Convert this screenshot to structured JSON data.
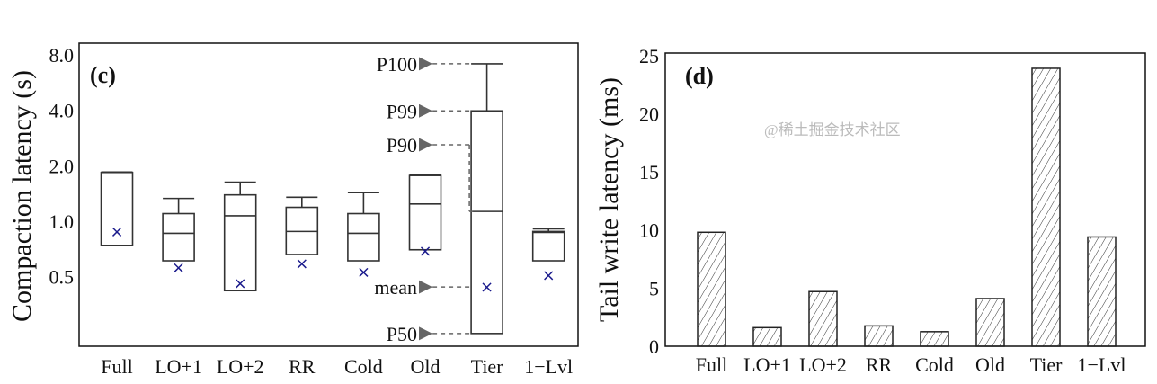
{
  "chart_data": [
    {
      "type": "box",
      "panel_label": "(c)",
      "ylabel": "Compaction latency (s)",
      "yscale": "log2",
      "ylim": [
        0.195,
        8.6
      ],
      "yticks": [
        "8.0",
        "4.0",
        "2.0",
        "1.0",
        "0.5"
      ],
      "ytick_values": [
        8,
        4,
        2,
        1,
        0.5
      ],
      "categories": [
        "Full",
        "LO+1",
        "LO+2",
        "RR",
        "Cold",
        "Old",
        "Tier",
        "1−Lvl"
      ],
      "stats": [
        {
          "p50": 0.74,
          "p90": 1.84,
          "p99": 1.84,
          "p100": 1.85,
          "mean": 0.88
        },
        {
          "p50": 0.61,
          "p90": 0.86,
          "p99": 1.1,
          "p100": 1.33,
          "mean": 0.56
        },
        {
          "p50": 0.42,
          "p90": 1.07,
          "p99": 1.39,
          "p100": 1.63,
          "mean": 0.46
        },
        {
          "p50": 0.66,
          "p90": 0.88,
          "p99": 1.19,
          "p100": 1.35,
          "mean": 0.59
        },
        {
          "p50": 0.61,
          "p90": 0.86,
          "p99": 1.1,
          "p100": 1.43,
          "mean": 0.53
        },
        {
          "p50": 0.7,
          "p90": 1.24,
          "p99": 1.77,
          "p100": 1.78,
          "mean": 0.69
        },
        {
          "p50": 0.246,
          "p90": 1.13,
          "p99": 3.97,
          "p100": 7.15,
          "mean": 0.44
        },
        {
          "p50": 0.61,
          "p90": 0.87,
          "p99": 0.88,
          "p100": 0.91,
          "mean": 0.51
        }
      ],
      "annotations": [
        "P100",
        "P99",
        "P90",
        "mean",
        "P50"
      ],
      "mean_marker_color": "#1a1a8c"
    },
    {
      "type": "bar",
      "panel_label": "(d)",
      "ylabel": "Tail write latency (ms)",
      "ylim": [
        0,
        25
      ],
      "yticks": [
        "0",
        "5",
        "10",
        "15",
        "20",
        "25"
      ],
      "ytick_values": [
        0,
        5,
        10,
        15,
        20,
        25
      ],
      "categories": [
        "Full",
        "LO+1",
        "LO+2",
        "RR",
        "Cold",
        "Old",
        "Tier",
        "1−Lvl"
      ],
      "values": [
        9.8,
        1.6,
        4.7,
        1.75,
        1.25,
        4.1,
        23.9,
        9.4
      ],
      "pattern": "hatched"
    }
  ],
  "watermark": "@稀土掘金技术社区"
}
